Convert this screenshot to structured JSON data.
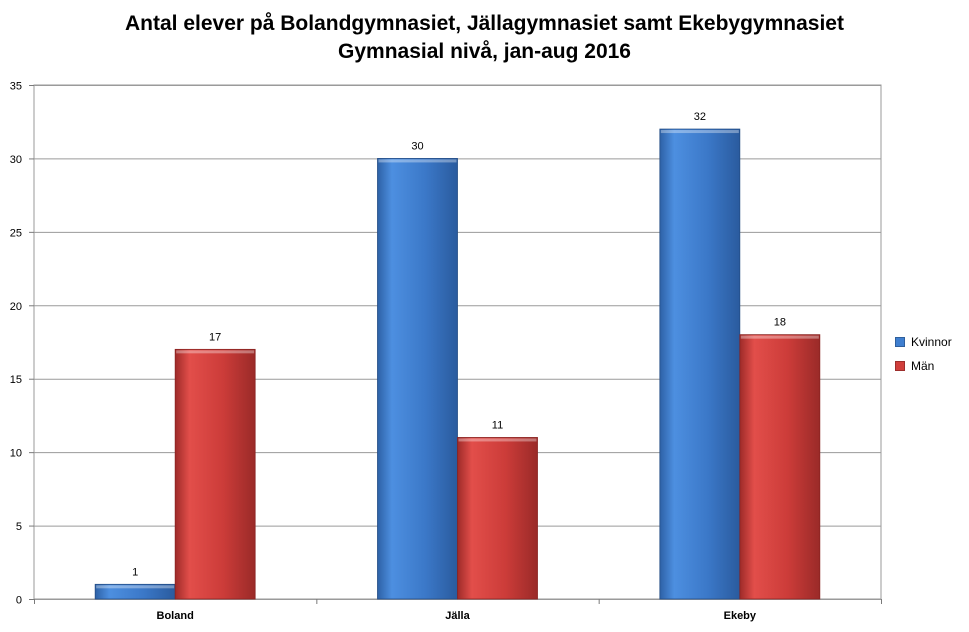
{
  "chart_data": {
    "type": "bar",
    "title": "Antal elever på Bolandgymnasiet, Jällagymnasiet samt Ekebygymnasiet",
    "subtitle": "Gymnasial nivå, jan-aug 2016",
    "categories": [
      "Boland",
      "Jälla",
      "Ekeby"
    ],
    "series": [
      {
        "name": "Kvinnor",
        "values": [
          1,
          30,
          32
        ],
        "color": "#3F7FD0"
      },
      {
        "name": "Män",
        "values": [
          17,
          11,
          18
        ],
        "color": "#D03E3B"
      }
    ],
    "ylim": [
      0,
      35
    ],
    "yticks": [
      0,
      5,
      10,
      15,
      20,
      25,
      30,
      35
    ],
    "grid": true,
    "legend_position": "right",
    "data_labels": true
  }
}
